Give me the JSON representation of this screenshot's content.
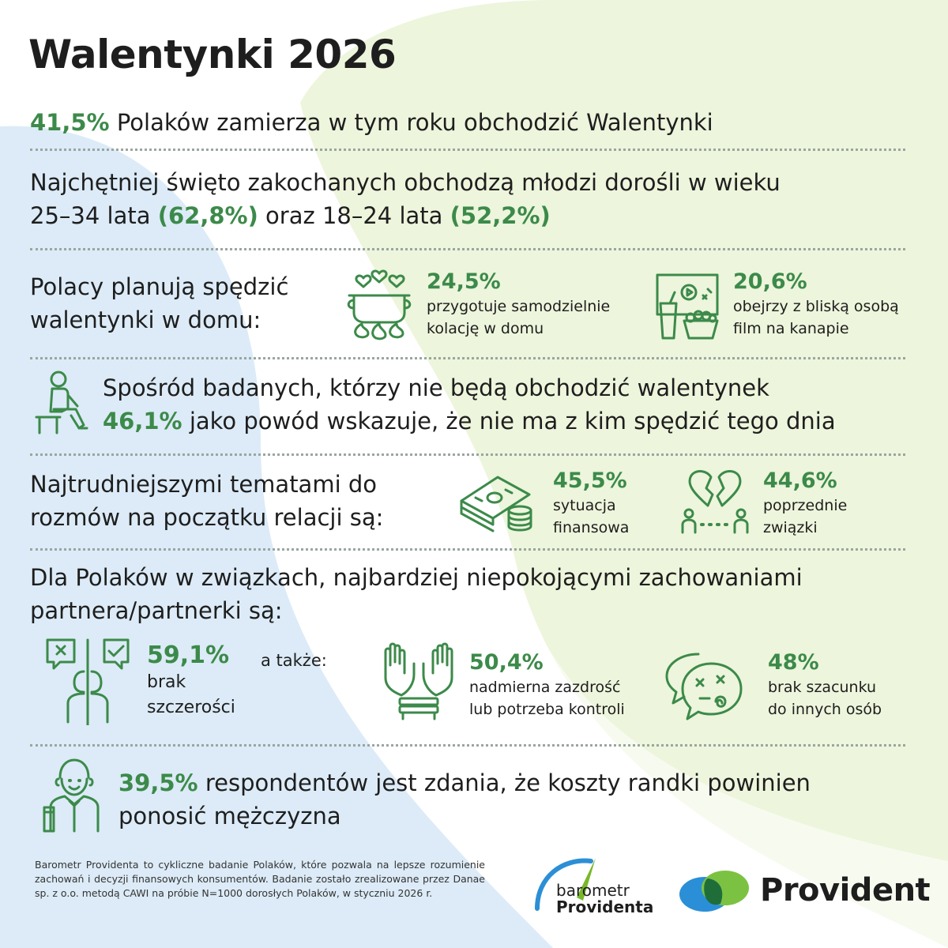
{
  "title": "Walentynki 2026",
  "section1": {
    "pct": "41,5%",
    "text": " Polaków zamierza w tym roku obchodzić Walentynki"
  },
  "section2": {
    "line1": "Najchętniej święto zakochanych obchodzą młodzi dorośli w wieku",
    "line2_a": "25–34 lata ",
    "pct_a": "(62,8%)",
    "line2_b": " oraz 18–24 lata ",
    "pct_b": "(52,2%)"
  },
  "section3": {
    "lead_line1": "Polacy planują spędzić",
    "lead_line2": "walentynki w domu:",
    "items": [
      {
        "pct": "24,5%",
        "line1": "przygotuje samodzielnie",
        "line2": "kolację w domu",
        "icon": "cooking-pot-icon"
      },
      {
        "pct": "20,6%",
        "line1": "obejrzy z bliską osobą",
        "line2": "film na kanapie",
        "icon": "movie-snack-icon"
      }
    ]
  },
  "section4": {
    "line1": "Spośród badanych, którzy nie będą obchodzić walentynek",
    "pct": "46,1%",
    "line2": " jako powód wskazuje, że nie ma z kim spędzić tego dnia",
    "icon": "sitting-person-icon"
  },
  "section5": {
    "lead_line1": "Najtrudniejszymi tematami do",
    "lead_line2": "rozmów na początku relacji są:",
    "items": [
      {
        "pct": "45,5%",
        "line1": "sytuacja",
        "line2": "finansowa",
        "icon": "money-stack-icon"
      },
      {
        "pct": "44,6%",
        "line1": "poprzednie",
        "line2": "związki",
        "icon": "broken-heart-icon"
      }
    ]
  },
  "section6": {
    "line1": "Dla Polaków w związkach, najbardziej niepokojącymi zachowaniami",
    "line2": "partnera/partnerki są:",
    "also": "a także:",
    "items": [
      {
        "pct": "59,1%",
        "line1": "brak",
        "line2": "szczerości",
        "icon": "dishonesty-icon"
      },
      {
        "pct": "50,4%",
        "line1": "nadmierna zazdrość",
        "line2": "lub potrzeba kontroli",
        "icon": "tied-hands-icon"
      },
      {
        "pct": "48%",
        "line1": "brak szacunku",
        "line2": "do innych osób",
        "icon": "angry-speech-icon"
      }
    ]
  },
  "section7": {
    "pct": "39,5%",
    "line1": " respondentów jest zdania, że koszty randki powinien",
    "line2": "ponosić mężczyzna",
    "icon": "man-paying-icon"
  },
  "footer": "Barometr Providenta to cykliczne badanie Polaków, które pozwala na lepsze rozumienie zachowań i decyzji finansowych konsumentów. Badanie zostało zrealizowane przez Danae sp. z o.o. metodą CAWI na próbie N=1000 dorosłych Polaków, w styczniu 2026 r.",
  "logos": {
    "barometr_line1": "barometr",
    "barometr_line2": "Providenta",
    "provident": "Provident"
  },
  "colors": {
    "accent": "#3c8a4a",
    "blue_bg": "#dcebf7",
    "green_bg": "#eaf4d6"
  }
}
